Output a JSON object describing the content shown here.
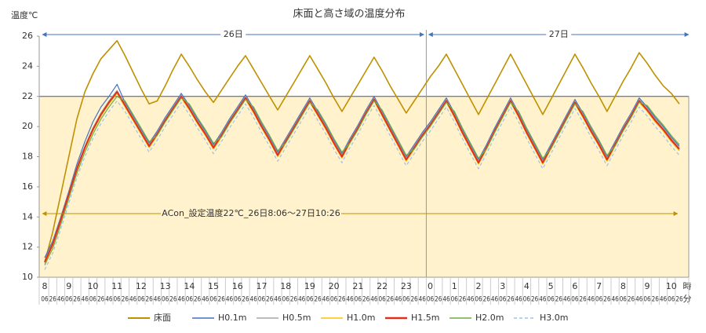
{
  "chart_data": {
    "type": "line",
    "title": "床面と高さ域の温度分布",
    "y_label": "温度℃",
    "x_label_hour": "時",
    "x_label_minute": "分",
    "day_labels": [
      "26日",
      "27日"
    ],
    "annotation": "ACon_設定温度22℃_26日8:06～27日10:26",
    "setpoint": 22,
    "shade_color": "#fff2cc",
    "legend": "bottom",
    "ylim": [
      10,
      26
    ],
    "yticks": [
      10,
      12,
      14,
      16,
      18,
      20,
      22,
      24,
      26
    ],
    "hour_labels": [
      8,
      null,
      null,
      9,
      null,
      null,
      10,
      null,
      null,
      11,
      null,
      null,
      12,
      null,
      null,
      13,
      null,
      null,
      14,
      null,
      null,
      15,
      null,
      null,
      16,
      null,
      null,
      17,
      null,
      null,
      18,
      null,
      null,
      19,
      null,
      null,
      20,
      null,
      null,
      21,
      null,
      null,
      22,
      null,
      null,
      23,
      null,
      null,
      0,
      null,
      null,
      1,
      null,
      null,
      2,
      null,
      null,
      3,
      null,
      null,
      4,
      null,
      null,
      5,
      null,
      null,
      6,
      null,
      null,
      7,
      null,
      null,
      8,
      null,
      null,
      9,
      null,
      null,
      10,
      null
    ],
    "categories": [
      "06",
      "26",
      "46",
      "06",
      "26",
      "46",
      "06",
      "26",
      "46",
      "06",
      "26",
      "46",
      "06",
      "26",
      "46",
      "06",
      "26",
      "46",
      "06",
      "26",
      "46",
      "06",
      "26",
      "46",
      "06",
      "26",
      "46",
      "06",
      "26",
      "46",
      "06",
      "26",
      "46",
      "06",
      "26",
      "46",
      "06",
      "26",
      "46",
      "06",
      "26",
      "46",
      "06",
      "26",
      "46",
      "06",
      "26",
      "46",
      "06",
      "26",
      "46",
      "06",
      "26",
      "46",
      "06",
      "26",
      "46",
      "06",
      "26",
      "46",
      "06",
      "26",
      "46",
      "06",
      "26",
      "46",
      "06",
      "26",
      "46",
      "06",
      "26",
      "46",
      "06",
      "26",
      "46",
      "06",
      "26",
      "46",
      "06",
      "26"
    ],
    "series": [
      {
        "name": "床面",
        "color": "#bf9000",
        "width": 1.6,
        "values": [
          11.0,
          13.0,
          15.5,
          18.0,
          20.5,
          22.3,
          23.5,
          24.5,
          25.1,
          25.7,
          24.7,
          23.6,
          22.5,
          21.5,
          21.7,
          22.7,
          23.8,
          24.8,
          24.0,
          23.1,
          22.3,
          21.6,
          22.4,
          23.2,
          24.0,
          24.7,
          23.8,
          22.9,
          22.0,
          21.1,
          22.0,
          22.9,
          23.8,
          24.7,
          23.8,
          22.9,
          21.9,
          21.0,
          21.9,
          22.8,
          23.7,
          24.6,
          23.7,
          22.7,
          21.8,
          20.9,
          21.7,
          22.5,
          23.3,
          24.0,
          24.8,
          23.8,
          22.8,
          21.8,
          20.8,
          21.8,
          22.8,
          23.8,
          24.8,
          23.8,
          22.8,
          21.8,
          20.8,
          21.8,
          22.8,
          23.8,
          24.8,
          23.9,
          22.9,
          22.0,
          21.0,
          22.0,
          23.0,
          23.9,
          24.9,
          24.2,
          23.4,
          22.7,
          22.2,
          21.5
        ]
      },
      {
        "name": "H0.1m",
        "color": "#4472c4",
        "width": 1.2,
        "values": [
          11.3,
          12.4,
          14.0,
          15.7,
          17.5,
          19.0,
          20.3,
          21.3,
          22.0,
          22.8,
          21.6,
          20.7,
          19.8,
          18.9,
          19.7,
          20.6,
          21.4,
          22.2,
          21.4,
          20.5,
          19.7,
          18.8,
          19.6,
          20.5,
          21.3,
          22.1,
          21.2,
          20.2,
          19.3,
          18.3,
          19.2,
          20.1,
          21.0,
          21.9,
          21.0,
          20.1,
          19.1,
          18.2,
          19.2,
          20.1,
          21.1,
          22.0,
          21.0,
          20.0,
          19.0,
          18.0,
          18.8,
          19.6,
          20.3,
          21.1,
          21.9,
          20.9,
          19.8,
          18.8,
          17.8,
          18.8,
          19.9,
          20.9,
          21.9,
          20.9,
          19.8,
          18.8,
          17.8,
          18.8,
          19.8,
          20.8,
          21.8,
          20.9,
          19.9,
          19.0,
          18.0,
          19.0,
          20.0,
          20.9,
          21.9,
          21.3,
          20.6,
          20.0,
          19.3,
          18.7
        ]
      },
      {
        "name": "H0.5m",
        "color": "#a5a5a5",
        "width": 1.2,
        "values": [
          11.1,
          12.3,
          13.9,
          15.6,
          17.3,
          18.7,
          19.9,
          20.9,
          21.7,
          22.4,
          21.5,
          20.6,
          19.7,
          18.8,
          19.6,
          20.5,
          21.3,
          22.1,
          21.3,
          20.4,
          19.6,
          18.7,
          19.5,
          20.4,
          21.2,
          22.0,
          21.1,
          20.1,
          19.2,
          18.2,
          19.1,
          20.0,
          20.9,
          21.8,
          20.9,
          20.0,
          19.0,
          18.1,
          19.1,
          20.0,
          21.0,
          21.9,
          20.9,
          19.9,
          18.9,
          17.9,
          18.7,
          19.5,
          20.2,
          21.0,
          21.8,
          20.8,
          19.7,
          18.7,
          17.7,
          18.7,
          19.8,
          20.8,
          21.8,
          20.8,
          19.7,
          18.7,
          17.7,
          18.7,
          19.7,
          20.7,
          21.7,
          20.8,
          19.8,
          18.9,
          17.9,
          18.9,
          19.9,
          20.8,
          21.8,
          21.2,
          20.5,
          19.9,
          19.2,
          18.6
        ]
      },
      {
        "name": "H1.0m",
        "color": "#ffc000",
        "width": 1.2,
        "values": [
          10.9,
          12.1,
          13.7,
          15.4,
          17.1,
          18.5,
          19.7,
          20.7,
          21.5,
          22.2,
          21.3,
          20.4,
          19.5,
          18.6,
          19.4,
          20.3,
          21.1,
          21.9,
          21.1,
          20.2,
          19.4,
          18.5,
          19.3,
          20.2,
          21.0,
          21.8,
          20.9,
          19.9,
          19.0,
          18.0,
          18.9,
          19.8,
          20.7,
          21.6,
          20.7,
          19.8,
          18.8,
          17.9,
          18.9,
          19.8,
          20.8,
          21.7,
          20.7,
          19.7,
          18.7,
          17.7,
          18.5,
          19.3,
          20.0,
          20.8,
          21.6,
          20.6,
          19.5,
          18.5,
          17.5,
          18.5,
          19.6,
          20.6,
          21.6,
          20.6,
          19.5,
          18.5,
          17.5,
          18.5,
          19.5,
          20.5,
          21.5,
          20.6,
          19.6,
          18.7,
          17.7,
          18.7,
          19.7,
          20.6,
          21.6,
          21.0,
          20.3,
          19.7,
          19.0,
          18.4
        ]
      },
      {
        "name": "H1.5m",
        "color": "#e0301e",
        "width": 2,
        "values": [
          11.0,
          12.2,
          13.8,
          15.5,
          17.2,
          18.6,
          19.8,
          20.8,
          21.6,
          22.3,
          21.4,
          20.5,
          19.6,
          18.7,
          19.5,
          20.4,
          21.2,
          22.0,
          21.2,
          20.3,
          19.5,
          18.6,
          19.4,
          20.3,
          21.1,
          21.9,
          21.0,
          20.0,
          19.1,
          18.1,
          19.0,
          19.9,
          20.8,
          21.7,
          20.8,
          19.9,
          18.9,
          18.0,
          19.0,
          19.9,
          20.9,
          21.8,
          20.8,
          19.8,
          18.8,
          17.8,
          18.6,
          19.4,
          20.1,
          20.9,
          21.7,
          20.7,
          19.6,
          18.6,
          17.6,
          18.6,
          19.7,
          20.7,
          21.7,
          20.7,
          19.6,
          18.6,
          17.6,
          18.6,
          19.6,
          20.6,
          21.6,
          20.7,
          19.7,
          18.8,
          17.8,
          18.8,
          19.8,
          20.7,
          21.7,
          21.1,
          20.4,
          19.8,
          19.1,
          18.5
        ]
      },
      {
        "name": "H2.0m",
        "color": "#70ad47",
        "width": 1.2,
        "values": [
          10.8,
          11.9,
          13.5,
          15.2,
          16.9,
          18.3,
          19.5,
          20.5,
          21.3,
          22.0,
          21.7,
          20.8,
          19.9,
          19.0,
          19.4,
          20.3,
          21.1,
          21.9,
          21.5,
          20.6,
          19.8,
          18.9,
          19.3,
          20.2,
          21.0,
          21.8,
          21.3,
          20.3,
          19.4,
          18.4,
          18.9,
          19.8,
          20.7,
          21.6,
          21.1,
          20.2,
          19.2,
          18.3,
          18.9,
          19.8,
          20.8,
          21.7,
          21.1,
          20.1,
          19.1,
          18.1,
          18.5,
          19.3,
          20.0,
          20.8,
          21.6,
          21.0,
          19.9,
          18.9,
          17.9,
          18.5,
          19.6,
          20.6,
          21.6,
          21.0,
          19.9,
          18.9,
          17.9,
          18.5,
          19.5,
          20.5,
          21.5,
          21.0,
          20.0,
          19.1,
          18.1,
          18.7,
          19.7,
          20.6,
          21.6,
          21.4,
          20.7,
          20.1,
          19.4,
          18.8
        ]
      },
      {
        "name": "H3.0m",
        "color": "#9dc3e6",
        "width": 1.2,
        "dashed": true,
        "values": [
          10.5,
          11.6,
          13.2,
          14.9,
          16.6,
          18.0,
          19.2,
          20.2,
          21.0,
          21.7,
          21.0,
          20.1,
          19.2,
          18.3,
          19.1,
          20.0,
          20.8,
          21.6,
          20.8,
          19.9,
          19.1,
          18.2,
          19.0,
          19.9,
          20.7,
          21.5,
          20.6,
          19.6,
          18.7,
          17.7,
          18.6,
          19.5,
          20.4,
          21.3,
          20.4,
          19.5,
          18.5,
          17.6,
          18.6,
          19.5,
          20.5,
          21.4,
          20.4,
          19.4,
          18.4,
          17.4,
          18.2,
          19.0,
          19.7,
          20.5,
          21.3,
          20.3,
          19.2,
          18.2,
          17.2,
          18.2,
          19.3,
          20.3,
          21.3,
          20.3,
          19.2,
          18.2,
          17.2,
          18.2,
          19.2,
          20.2,
          21.2,
          20.3,
          19.3,
          18.4,
          17.4,
          18.4,
          19.4,
          20.3,
          21.3,
          20.7,
          20.0,
          19.4,
          18.7,
          18.1
        ]
      }
    ]
  }
}
